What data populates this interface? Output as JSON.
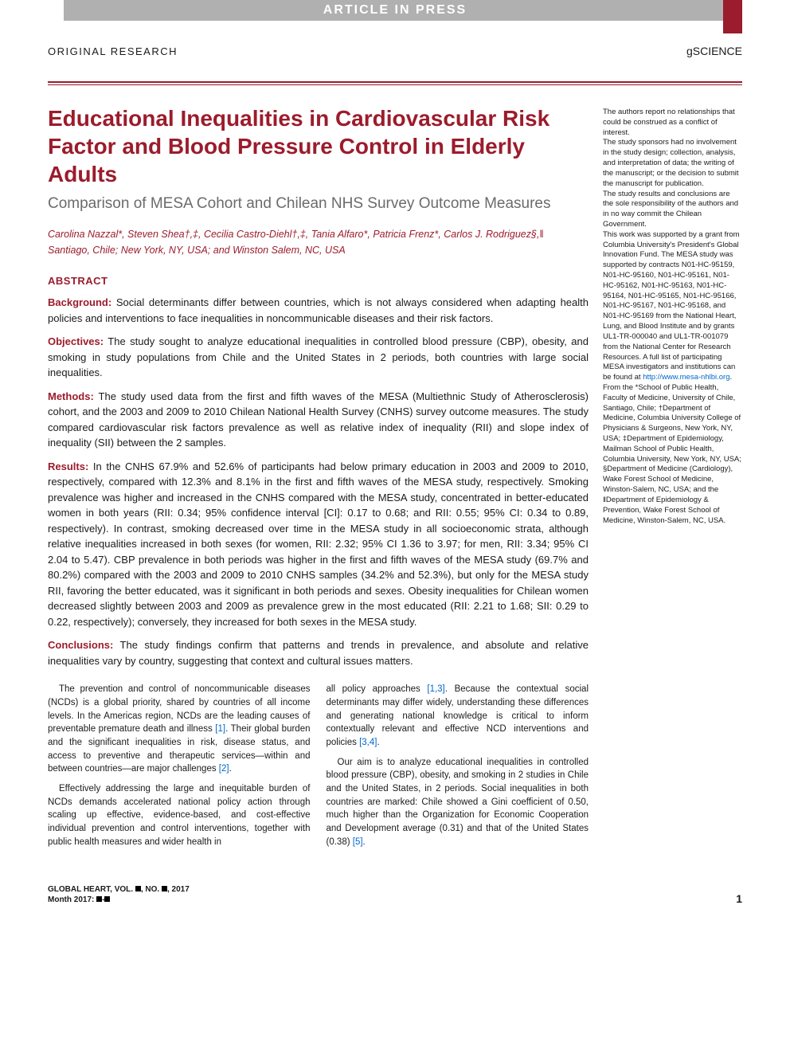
{
  "meta": {
    "article_in_press": "ARTICLE IN PRESS",
    "header_left": "ORIGINAL RESEARCH",
    "header_right": "gSCIENCE"
  },
  "title": "Educational Inequalities in Cardiovascular Risk Factor and Blood Pressure Control in Elderly Adults",
  "subtitle": "Comparison of MESA Cohort and Chilean NHS Survey Outcome Measures",
  "authors_line": "Carolina Nazzal*, Steven Shea†,‡, Cecilia Castro-Diehl†,‡, Tania Alfaro*, Patricia Frenz*, Carlos J. Rodriguez§,‖",
  "affil_line": "Santiago, Chile; New York, NY, USA; and Winston Salem, NC, USA",
  "abstract": {
    "head": "ABSTRACT",
    "background_label": "Background:",
    "background": "Social determinants differ between countries, which is not always considered when adapting health policies and interventions to face inequalities in noncommunicable diseases and their risk factors.",
    "objectives_label": "Objectives:",
    "objectives": "The study sought to analyze educational inequalities in controlled blood pressure (CBP), obesity, and smoking in study populations from Chile and the United States in 2 periods, both countries with large social inequalities.",
    "methods_label": "Methods:",
    "methods": "The study used data from the first and fifth waves of the MESA (Multiethnic Study of Atherosclerosis) cohort, and the 2003 and 2009 to 2010 Chilean National Health Survey (CNHS) survey outcome measures. The study compared cardiovascular risk factors prevalence as well as relative index of inequality (RII) and slope index of inequality (SII) between the 2 samples.",
    "results_label": "Results:",
    "results": "In the CNHS 67.9% and 52.6% of participants had below primary education in 2003 and 2009 to 2010, respectively, compared with 12.3% and 8.1% in the first and fifth waves of the MESA study, respectively. Smoking prevalence was higher and increased in the CNHS compared with the MESA study, concentrated in better-educated women in both years (RII: 0.34; 95% confidence interval [CI]: 0.17 to 0.68; and RII: 0.55; 95% CI: 0.34 to 0.89, respectively). In contrast, smoking decreased over time in the MESA study in all socioeconomic strata, although relative inequalities increased in both sexes (for women, RII: 2.32; 95% CI 1.36 to 3.97; for men, RII: 3.34; 95% CI 2.04 to 5.47). CBP prevalence in both periods was higher in the first and fifth waves of the MESA study (69.7% and 80.2%) compared with the 2003 and 2009 to 2010 CNHS samples (34.2% and 52.3%), but only for the MESA study RII, favoring the better educated, was it significant in both periods and sexes. Obesity inequalities for Chilean women decreased slightly between 2003 and 2009 as prevalence grew in the most educated (RII: 2.21 to 1.68; SII: 0.29 to 0.22, respectively); conversely, they increased for both sexes in the MESA study.",
    "conclusions_label": "Conclusions:",
    "conclusions": "The study findings confirm that patterns and trends in prevalence, and absolute and relative inequalities vary by country, suggesting that context and cultural issues matters."
  },
  "body": {
    "col1_p1": "The prevention and control of noncommunicable diseases (NCDs) is a global priority, shared by countries of all income levels. In the Americas region, NCDs are the leading causes of preventable premature death and illness [1]. Their global burden and the significant inequalities in risk, disease status, and access to preventive and therapeutic services—within and between countries—are major challenges [2].",
    "col1_p2": "Effectively addressing the large and inequitable burden of NCDs demands accelerated national policy action through scaling up effective, evidence-based, and cost-effective individual prevention and control interventions, together with public health measures and wider health in",
    "col2_p1": "all policy approaches [1,3]. Because the contextual social determinants may differ widely, understanding these differences and generating national knowledge is critical to inform contextually relevant and effective NCD interventions and policies [3,4].",
    "col2_p2": "Our aim is to analyze educational inequalities in controlled blood pressure (CBP), obesity, and smoking in 2 studies in Chile and the United States, in 2 periods. Social inequalities in both countries are marked: Chile showed a Gini coefficient of 0.50, much higher than the Organization for Economic Cooperation and Development average (0.31) and that of the United States (0.38) [5]."
  },
  "sidebar": {
    "p1": "The authors report no relationships that could be construed as a conflict of interest.",
    "p2": "The study sponsors had no involvement in the study design; collection, analysis, and interpretation of data; the writing of the manuscript; or the decision to submit the manuscript for publication.",
    "p3": "The study results and conclusions are the sole responsibility of the authors and in no way commit the Chilean Government.",
    "p4_a": "This work was supported by a grant from Columbia University's President's Global Innovation Fund. The MESA study was supported by contracts N01-HC-95159, N01-HC-95160, N01-HC-95161, N01-HC-95162, N01-HC-95163, N01-HC-95164, N01-HC-95165, N01-HC-95166, N01-HC-95167, N01-HC-95168, and N01-HC-95169 from the National Heart, Lung, and Blood Institute and by grants UL1-TR-000040 and UL1-TR-001079 from the National Center for Research Resources. A full list of participating MESA investigators and institutions can be found at ",
    "p4_link": "http://www.mesa-nhlbi.org",
    "p4_b": ".",
    "p5": "From the *School of Public Health, Faculty of Medicine, University of Chile, Santiago, Chile; †Department of Medicine, Columbia University College of Physicians & Surgeons, New York, NY, USA; ‡Department of Epidemiology, Mailman School of Public Health, Columbia University, New York, NY, USA; §Department of Medicine (Cardiology), Wake Forest School of Medicine, Winston-Salem, NC, USA; and the ‖Department of Epidemiology & Prevention, Wake Forest School of Medicine, Winston-Salem, NC, USA."
  },
  "footer": {
    "line1_a": "GLOBAL HEART, VOL. ",
    "line1_b": ", NO. ",
    "line1_c": ", 2017",
    "line2_a": "Month 2017: ",
    "line2_b": "-",
    "page": "1"
  },
  "colors": {
    "accent": "#9b1c2c",
    "link": "#0066cc",
    "text": "#1a1a1a",
    "muted": "#6b6b6b",
    "bar_bg": "#b0b0b0"
  },
  "refs": {
    "r1": "[1]",
    "r2": "[2]",
    "r13": "[1,3]",
    "r34": "[3,4]",
    "r5": "[5]"
  }
}
